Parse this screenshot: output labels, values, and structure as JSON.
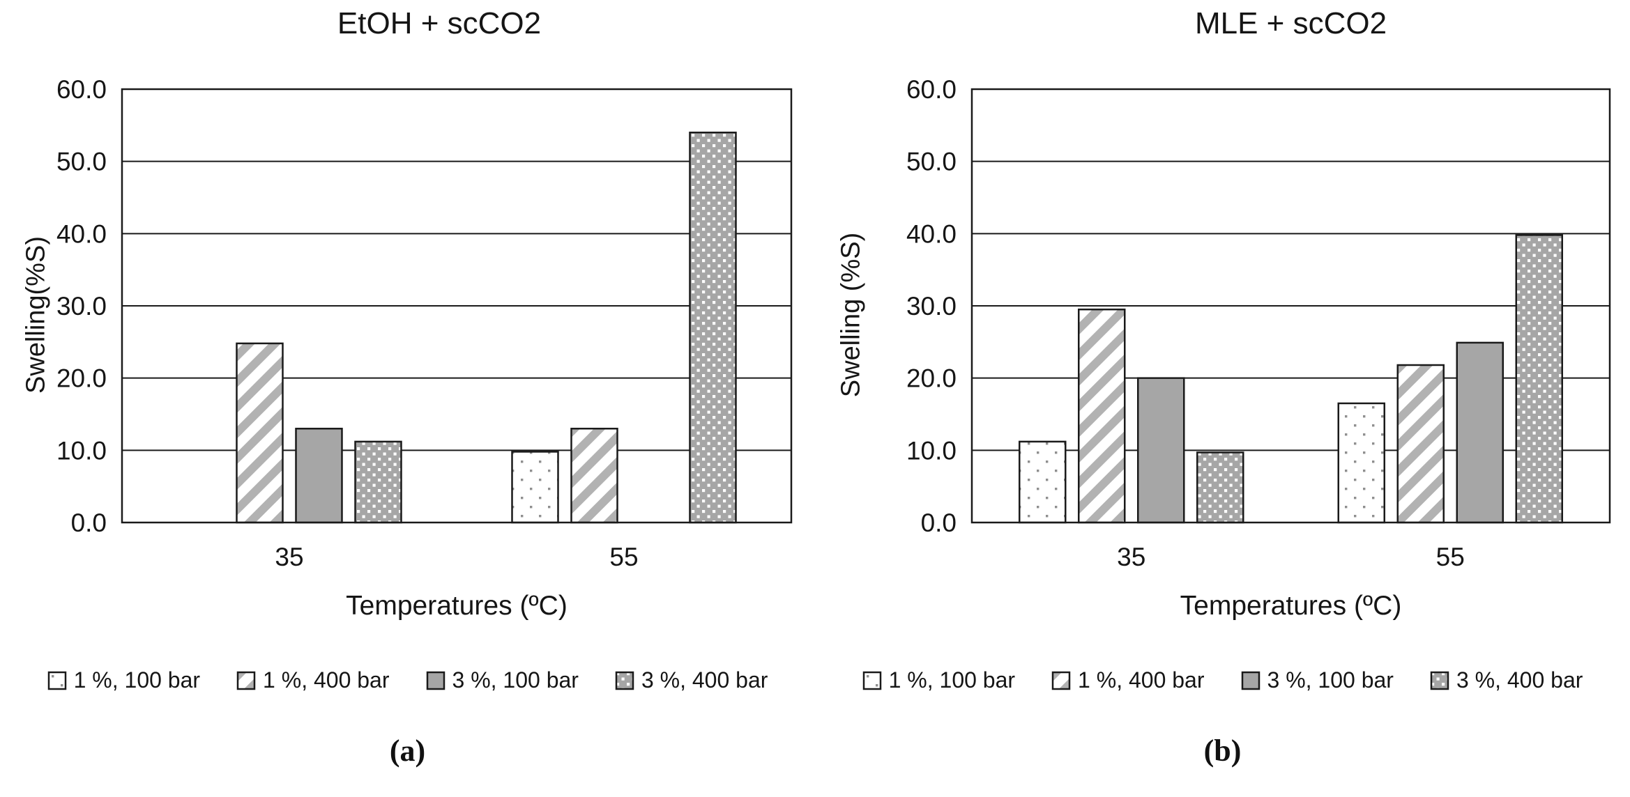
{
  "colors": {
    "bar_solid_gray": "#a6a6a6",
    "stripe_gray": "#b2b2b2",
    "light_dot_gray": "#8f8f8f",
    "dense_dot_bg": "#a6a6a6",
    "dense_dot_white": "#ffffff",
    "outline_black": "#1a1a1a",
    "text_black": "#151515"
  },
  "chart_data": [
    {
      "type": "bar",
      "id": "a",
      "title": "EtOH + scCO2",
      "caption": "(a)",
      "xlabel": "Temperatures (ºC)",
      "ylabel": "Swelling(%S)",
      "categories": [
        "35",
        "55"
      ],
      "series": [
        {
          "name": "1 %, 100 bar",
          "pattern": "dots-light",
          "values": [
            null,
            9.8
          ]
        },
        {
          "name": "1 %, 400 bar",
          "pattern": "diag-stripes",
          "values": [
            24.8,
            13.0
          ]
        },
        {
          "name": "3 %, 100 bar",
          "pattern": "solid-gray",
          "values": [
            13.0,
            null
          ]
        },
        {
          "name": "3 %, 400 bar",
          "pattern": "dots-dense",
          "values": [
            11.2,
            54.0
          ]
        }
      ],
      "ylim": [
        0,
        60
      ],
      "ytick_step": 10,
      "ytick_labels": [
        "0.0",
        "10.0",
        "20.0",
        "30.0",
        "40.0",
        "50.0",
        "60.0"
      ],
      "grid": true,
      "legend_position": "bottom"
    },
    {
      "type": "bar",
      "id": "b",
      "title": "MLE + scCO2",
      "caption": "(b)",
      "xlabel": "Temperatures (ºC)",
      "ylabel": "Swelling (%S)",
      "categories": [
        "35",
        "55"
      ],
      "series": [
        {
          "name": "1 %, 100 bar",
          "pattern": "dots-light",
          "values": [
            11.2,
            16.5
          ]
        },
        {
          "name": "1 %, 400 bar",
          "pattern": "diag-stripes",
          "values": [
            29.5,
            21.8
          ]
        },
        {
          "name": "3 %, 100 bar",
          "pattern": "solid-gray",
          "values": [
            20.0,
            24.9
          ]
        },
        {
          "name": "3 %, 400 bar",
          "pattern": "dots-dense",
          "values": [
            9.7,
            39.8
          ]
        }
      ],
      "ylim": [
        0,
        60
      ],
      "ytick_step": 10,
      "ytick_labels": [
        "0.0",
        "10.0",
        "20.0",
        "30.0",
        "40.0",
        "50.0",
        "60.0"
      ],
      "grid": true,
      "legend_position": "bottom"
    }
  ]
}
